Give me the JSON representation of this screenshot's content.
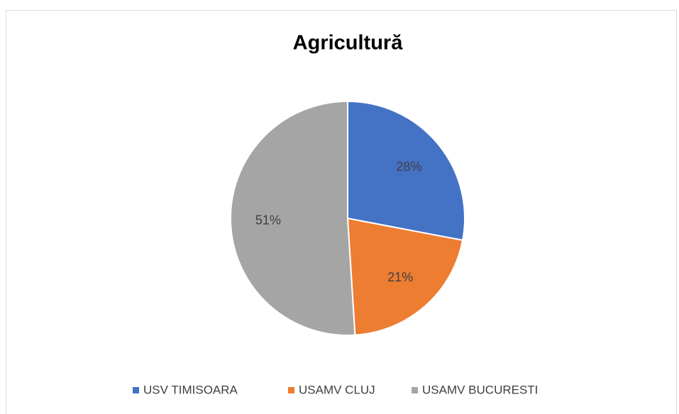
{
  "chart_data": {
    "type": "pie",
    "title": "Agricultură",
    "categories": [
      "USV TIMISOARA",
      "USAMV CLUJ",
      "USAMV BUCURESTI"
    ],
    "values": [
      28,
      21,
      51
    ],
    "value_labels": [
      "28%",
      "21%",
      "51%"
    ],
    "colors": [
      "#4472c4",
      "#ed7d31",
      "#a5a5a5"
    ],
    "legend": "bottom"
  }
}
